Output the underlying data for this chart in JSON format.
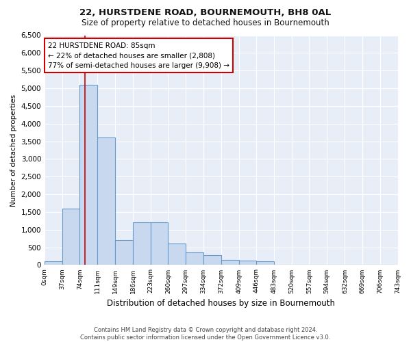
{
  "title": "22, HURSTDENE ROAD, BOURNEMOUTH, BH8 0AL",
  "subtitle": "Size of property relative to detached houses in Bournemouth",
  "xlabel": "Distribution of detached houses by size in Bournemouth",
  "ylabel": "Number of detached properties",
  "bin_edges": [
    0,
    37,
    74,
    111,
    149,
    186,
    223,
    260,
    297,
    334,
    372,
    409,
    446,
    483,
    520,
    557,
    594,
    632,
    669,
    706,
    743
  ],
  "bin_counts": [
    100,
    1600,
    5100,
    3600,
    700,
    1200,
    1200,
    600,
    350,
    280,
    150,
    130,
    100,
    0,
    0,
    0,
    0,
    0,
    0,
    0
  ],
  "bar_color": "#c8d9ef",
  "bar_edge_color": "#6699cc",
  "vline_x": 85,
  "vline_color": "#cc0000",
  "ylim": [
    0,
    6500
  ],
  "yticks": [
    0,
    500,
    1000,
    1500,
    2000,
    2500,
    3000,
    3500,
    4000,
    4500,
    5000,
    5500,
    6000,
    6500
  ],
  "annotation_title": "22 HURSTDENE ROAD: 85sqm",
  "annotation_line1": "← 22% of detached houses are smaller (2,808)",
  "annotation_line2": "77% of semi-detached houses are larger (9,908) →",
  "annotation_box_color": "#ffffff",
  "annotation_box_edge_color": "#cc0000",
  "footer1": "Contains HM Land Registry data © Crown copyright and database right 2024.",
  "footer2": "Contains public sector information licensed under the Open Government Licence v3.0.",
  "bg_color": "#ffffff",
  "plot_bg_color": "#e8eef8"
}
